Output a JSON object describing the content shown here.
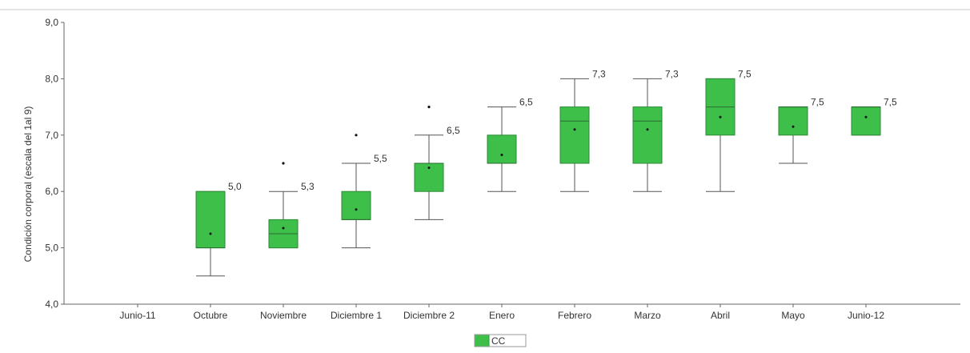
{
  "chart_data": {
    "type": "box",
    "ylabel": "Condición corporal (escala del 1al 9)",
    "ylim": [
      4.0,
      9.0
    ],
    "yticks": [
      "4,0",
      "5,0",
      "6,0",
      "7,0",
      "8,0",
      "9,0"
    ],
    "ytick_values": [
      4,
      5,
      6,
      7,
      8,
      9
    ],
    "categories": [
      "Junio-11",
      "Octubre",
      "Noviembre",
      "Diciembre 1",
      "Diciembre 2",
      "Enero",
      "Febrero",
      "Marzo",
      "Abril",
      "Mayo",
      "Junio-12"
    ],
    "series": [
      {
        "name": "CC",
        "color": "#3dbf4a",
        "boxes": [
          null,
          {
            "min": 4.5,
            "q1": 5.0,
            "median": 5.0,
            "q3": 6.0,
            "max": 6.0,
            "mean": 5.25,
            "outliers": [],
            "label": "5,0"
          },
          {
            "min": 5.0,
            "q1": 5.0,
            "median": 5.25,
            "q3": 5.5,
            "max": 6.0,
            "mean": 5.35,
            "outliers": [
              6.5
            ],
            "label": "5,3"
          },
          {
            "min": 5.0,
            "q1": 5.5,
            "median": 5.5,
            "q3": 6.0,
            "max": 6.5,
            "mean": 5.68,
            "outliers": [
              7.0
            ],
            "label": "5,5"
          },
          {
            "min": 5.5,
            "q1": 6.0,
            "median": 6.5,
            "q3": 6.5,
            "max": 7.0,
            "mean": 6.42,
            "outliers": [
              7.5
            ],
            "label": "6,5"
          },
          {
            "min": 6.0,
            "q1": 6.5,
            "median": 6.5,
            "q3": 7.0,
            "max": 7.5,
            "mean": 6.65,
            "outliers": [],
            "label": "6,5"
          },
          {
            "min": 6.0,
            "q1": 6.5,
            "median": 7.25,
            "q3": 7.5,
            "max": 8.0,
            "mean": 7.1,
            "outliers": [],
            "label": "7,3"
          },
          {
            "min": 6.0,
            "q1": 6.5,
            "median": 7.25,
            "q3": 7.5,
            "max": 8.0,
            "mean": 7.1,
            "outliers": [],
            "label": "7,3"
          },
          {
            "min": 6.0,
            "q1": 7.0,
            "median": 7.5,
            "q3": 8.0,
            "max": 8.0,
            "mean": 7.32,
            "outliers": [],
            "label": "7,5"
          },
          {
            "min": 6.5,
            "q1": 7.0,
            "median": 7.5,
            "q3": 7.5,
            "max": 7.5,
            "mean": 7.15,
            "outliers": [],
            "label": "7,5"
          },
          {
            "min": 7.0,
            "q1": 7.0,
            "median": 7.5,
            "q3": 7.5,
            "max": 7.5,
            "mean": 7.32,
            "outliers": [],
            "label": "7,5"
          }
        ]
      }
    ],
    "legend": {
      "position": "bottom-center",
      "entries": [
        "CC"
      ]
    },
    "grid": false
  }
}
